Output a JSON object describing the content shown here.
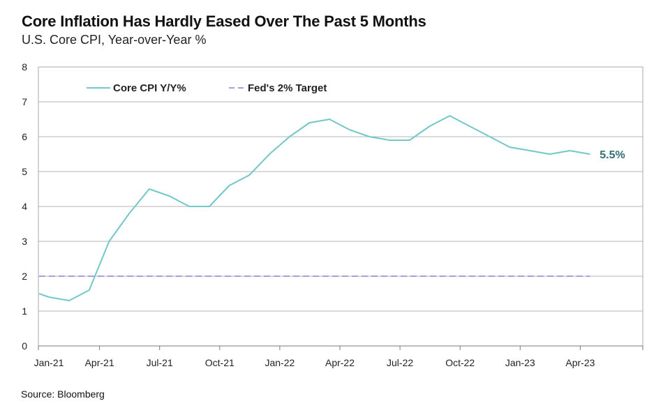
{
  "chart_data": {
    "type": "line",
    "title": "Core Inflation Has Hardly Eased Over The Past 5 Months",
    "subtitle": "U.S. Core CPI, Year-over-Year %",
    "source": "Source: Bloomberg",
    "xlabel": "",
    "ylabel": "",
    "ylim": [
      0,
      8
    ],
    "yticks": [
      0,
      1,
      2,
      3,
      4,
      5,
      6,
      7,
      8
    ],
    "grid": true,
    "legend_position": "top-left",
    "x": [
      "Jan-21",
      "Feb-21",
      "Mar-21",
      "Apr-21",
      "May-21",
      "Jun-21",
      "Jul-21",
      "Aug-21",
      "Sep-21",
      "Oct-21",
      "Nov-21",
      "Dec-21",
      "Jan-22",
      "Feb-22",
      "Mar-22",
      "Apr-22",
      "May-22",
      "Jun-22",
      "Jul-22",
      "Aug-22",
      "Sep-22",
      "Oct-22",
      "Nov-22",
      "Dec-22",
      "Jan-23",
      "Feb-23",
      "Mar-23",
      "Apr-23"
    ],
    "xtick_labels": [
      "Jan-21",
      "Apr-21",
      "Jul-21",
      "Oct-21",
      "Jan-22",
      "Apr-22",
      "Jul-22",
      "Oct-22",
      "Jan-23",
      "Apr-23"
    ],
    "series": [
      {
        "name": "Core CPI Y/Y%",
        "style": "solid",
        "color": "#72c7c7",
        "points": [
          [
            0,
            1.5
          ],
          [
            0.5,
            1.4
          ],
          [
            1.5,
            1.3
          ],
          [
            2.5,
            1.6
          ],
          [
            3.5,
            3.0
          ],
          [
            4.5,
            3.8
          ],
          [
            5.5,
            4.5
          ],
          [
            6.5,
            4.3
          ],
          [
            7.5,
            4.0
          ],
          [
            8.5,
            4.0
          ],
          [
            9.5,
            4.6
          ],
          [
            10.5,
            4.9
          ],
          [
            11.5,
            5.5
          ],
          [
            12.5,
            6.0
          ],
          [
            13.5,
            6.4
          ],
          [
            14.5,
            6.5
          ],
          [
            15.5,
            6.2
          ],
          [
            16.5,
            6.0
          ],
          [
            17.5,
            5.9
          ],
          [
            18.5,
            5.9
          ],
          [
            19.5,
            6.3
          ],
          [
            20.5,
            6.6
          ],
          [
            21.5,
            6.3
          ],
          [
            22.5,
            6.0
          ],
          [
            23.5,
            5.7
          ],
          [
            24.5,
            5.6
          ],
          [
            25.5,
            5.5
          ],
          [
            26.5,
            5.6
          ],
          [
            27.5,
            5.5
          ]
        ]
      },
      {
        "name": "Fed's 2% Target",
        "style": "dashed",
        "color": "#8a7fd6",
        "points": [
          [
            0,
            2.0
          ],
          [
            27.5,
            2.0
          ]
        ]
      }
    ],
    "annotations": [
      {
        "text": "5.5%",
        "x": 27.5,
        "y": 5.5,
        "color": "#2f6f75"
      }
    ]
  }
}
